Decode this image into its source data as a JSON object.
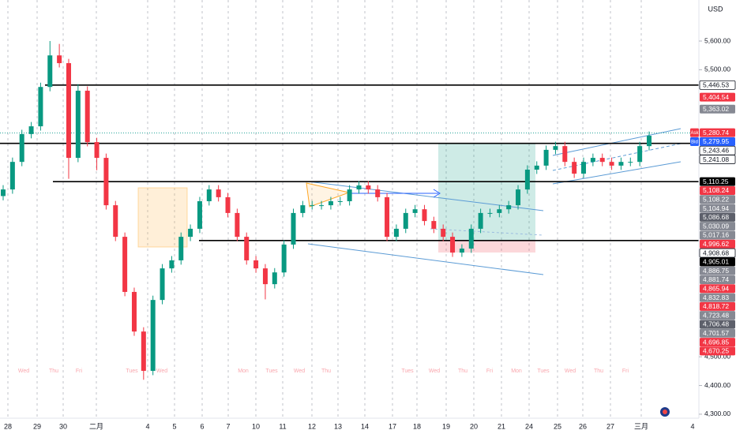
{
  "chart_data": {
    "type": "candlestick",
    "currency": "USD",
    "open": [
      5060,
      5083,
      5179,
      5276,
      5303,
      5440,
      5550,
      5523,
      5193,
      5427,
      5248,
      5193,
      5028,
      4918,
      4726,
      4588,
      4451,
      4698,
      4808,
      4836,
      4918,
      4946,
      5042,
      5083,
      5056,
      5001,
      4918,
      4836,
      4808,
      4753,
      4794,
      4891,
      5001,
      5028,
      5028,
      5028,
      5042,
      5042,
      5083,
      5097,
      5083,
      5056,
      4918,
      4946,
      5001,
      5014,
      4973,
      4946,
      4918,
      4863,
      4877,
      4946,
      5001,
      5001,
      5014,
      5028,
      5083,
      5152,
      5166,
      5221,
      5234,
      5179,
      5138,
      5179,
      5193,
      5179,
      5166,
      5179,
      5179,
      5234
    ],
    "high": [
      5098,
      5194,
      5291,
      5318,
      5455,
      5600,
      5590,
      5538,
      5450,
      5442,
      5263,
      5208,
      5043,
      4933,
      4741,
      4603,
      4713,
      4823,
      4851,
      4933,
      4961,
      5057,
      5098,
      5098,
      5071,
      5016,
      4933,
      4851,
      4823,
      4809,
      4906,
      5016,
      5043,
      5043,
      5043,
      5057,
      5057,
      5098,
      5112,
      5112,
      5098,
      5071,
      4961,
      5016,
      5029,
      5029,
      4988,
      4961,
      4933,
      4892,
      4961,
      5016,
      5016,
      5029,
      5043,
      5098,
      5167,
      5181,
      5236,
      5249,
      5249,
      5194,
      5194,
      5208,
      5208,
      5194,
      5194,
      5194,
      5249,
      5285
    ],
    "low": [
      5045,
      5068,
      5164,
      5261,
      5288,
      5425,
      5508,
      5120,
      5178,
      5233,
      5150,
      5013,
      4903,
      4711,
      4573,
      4420,
      4436,
      4683,
      4793,
      4821,
      4903,
      4931,
      5027,
      5041,
      4986,
      4903,
      4821,
      4793,
      4700,
      4738,
      4779,
      4876,
      4986,
      5013,
      5013,
      5013,
      5027,
      5027,
      5068,
      5068,
      5041,
      4903,
      4903,
      4931,
      4986,
      4958,
      4931,
      4903,
      4848,
      4848,
      4862,
      4931,
      4986,
      4986,
      4999,
      5013,
      5068,
      5137,
      5151,
      5206,
      5164,
      5123,
      5123,
      5164,
      5164,
      5151,
      5151,
      5164,
      5164,
      5219
    ],
    "close": [
      5083,
      5179,
      5276,
      5303,
      5440,
      5550,
      5523,
      5193,
      5427,
      5248,
      5193,
      5028,
      4918,
      4726,
      4588,
      4451,
      4698,
      4808,
      4836,
      4918,
      4946,
      5042,
      5083,
      5056,
      5001,
      4918,
      4836,
      4808,
      4753,
      4794,
      4891,
      5001,
      5028,
      5028,
      5028,
      5042,
      5042,
      5083,
      5097,
      5083,
      5056,
      4918,
      4946,
      5001,
      5014,
      4973,
      4946,
      4918,
      4863,
      4877,
      4946,
      5001,
      5001,
      5014,
      5028,
      5083,
      5152,
      5166,
      5221,
      5234,
      5179,
      5138,
      5179,
      5193,
      5179,
      5166,
      5179,
      5179,
      5234,
      5270
    ],
    "up_color": "#089981",
    "down_color": "#f23645",
    "ylim": [
      4286,
      5743
    ],
    "yticks": [
      {
        "value": 5600,
        "label": "5,600.00"
      },
      {
        "value": 5500,
        "label": "5,500.00"
      },
      {
        "value": 4500,
        "label": "4,500.00"
      },
      {
        "value": 4400,
        "label": "4,400.00"
      },
      {
        "value": 4300,
        "label": "4,300.00"
      }
    ],
    "dates": [
      "28",
      "29",
      "30",
      "二月",
      "4",
      "5",
      "6",
      "7",
      "10",
      "11",
      "12",
      "13",
      "14",
      "17",
      "18",
      "19",
      "20",
      "21",
      "24",
      "25",
      "26",
      "27",
      "三月",
      "4"
    ],
    "sessions": [
      "Wed",
      "Thu",
      "Fri",
      "Tues",
      "Wed",
      "Mon",
      "Tues",
      "Wed",
      "Thu",
      "Tues",
      "Wed",
      "Thu",
      "Fri",
      "Mon",
      "Tues",
      "Wed",
      "Thu",
      "Fri"
    ],
    "price_tags": [
      {
        "value": 5446.53,
        "label": "5,446.53",
        "color": "#ffffff",
        "line": "solid"
      },
      {
        "value": 5404.54,
        "label": "5,404.54",
        "color": "#f23645"
      },
      {
        "value": 5363.02,
        "label": "5,363.02",
        "color": "#868993"
      },
      {
        "value": 5280.74,
        "label": "5,280.74",
        "color": "#f23645",
        "side": "Ask"
      },
      {
        "value": 5279.95,
        "label": "5,279.95",
        "color": "#2962ff",
        "side": "Bid",
        "line": "dotted"
      },
      {
        "value": 5243.46,
        "label": "5,243.46",
        "color": "#ffffff",
        "line": "solid"
      },
      {
        "value": 5241.08,
        "label": "5,241.08",
        "color": "#ffffff"
      },
      {
        "value": 5110.25,
        "label": "5,110.25",
        "color": "#000000",
        "line": "solid"
      },
      {
        "value": 5108.24,
        "label": "5,108.24",
        "color": "#f23645"
      },
      {
        "value": 5108.22,
        "label": "5,108.22",
        "color": "#868993"
      },
      {
        "value": 5104.94,
        "label": "5,104.94",
        "color": "#868993"
      },
      {
        "value": 5086.68,
        "label": "5,086.68",
        "color": "#5d606b"
      },
      {
        "value": 5030.09,
        "label": "5,030.09",
        "color": "#868993"
      },
      {
        "value": 5017.16,
        "label": "5,017.16",
        "color": "#868993"
      },
      {
        "value": 4996.62,
        "label": "4,996.62",
        "color": "#f23645"
      },
      {
        "value": 4908.68,
        "label": "4,908.68",
        "color": "#ffffff"
      },
      {
        "value": 4905.01,
        "label": "4,905.01",
        "color": "#000000",
        "line": "solid"
      },
      {
        "value": 4886.75,
        "label": "4,886.75",
        "color": "#868993"
      },
      {
        "value": 4881.74,
        "label": "4,881.74",
        "color": "#868993"
      },
      {
        "value": 4865.94,
        "label": "4,865.94",
        "color": "#f23645"
      },
      {
        "value": 4832.83,
        "label": "4,832.83",
        "color": "#868993"
      },
      {
        "value": 4818.72,
        "label": "4,818.72",
        "color": "#f23645"
      },
      {
        "value": 4723.48,
        "label": "4,723.48",
        "color": "#868993"
      },
      {
        "value": 4706.48,
        "label": "4,706.48",
        "color": "#5d606b"
      },
      {
        "value": 4701.57,
        "label": "4,701.57",
        "color": "#868993"
      },
      {
        "value": 4696.85,
        "label": "4,696.85",
        "color": "#f23645"
      },
      {
        "value": 4670.25,
        "label": "4,670.25",
        "color": "#f23645"
      }
    ]
  }
}
